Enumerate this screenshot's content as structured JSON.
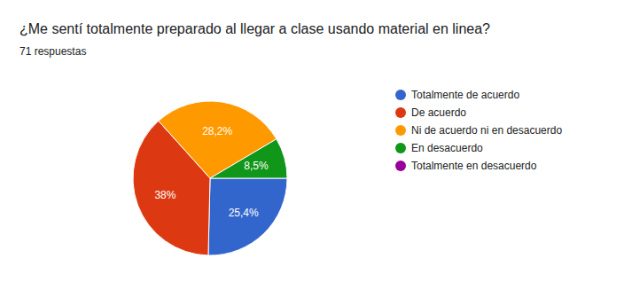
{
  "chart_data": {
    "type": "pie",
    "title": "¿Me sentí totalmente preparado al llegar a clase usando material en linea?",
    "subtitle": "71 respuestas",
    "categories": [
      "Totalmente de acuerdo",
      "De acuerdo",
      "Ni de acuerdo ni en desacuerdo",
      "En desacuerdo",
      "Totalmente en desacuerdo"
    ],
    "values": [
      25.4,
      38,
      28.2,
      8.5,
      0
    ],
    "value_labels": [
      "25,4%",
      "38%",
      "28,2%",
      "8,5%",
      null
    ],
    "colors": [
      "#3366cc",
      "#dc3912",
      "#ff9900",
      "#109618",
      "#990099"
    ],
    "data_labels": true,
    "legend": "right"
  }
}
